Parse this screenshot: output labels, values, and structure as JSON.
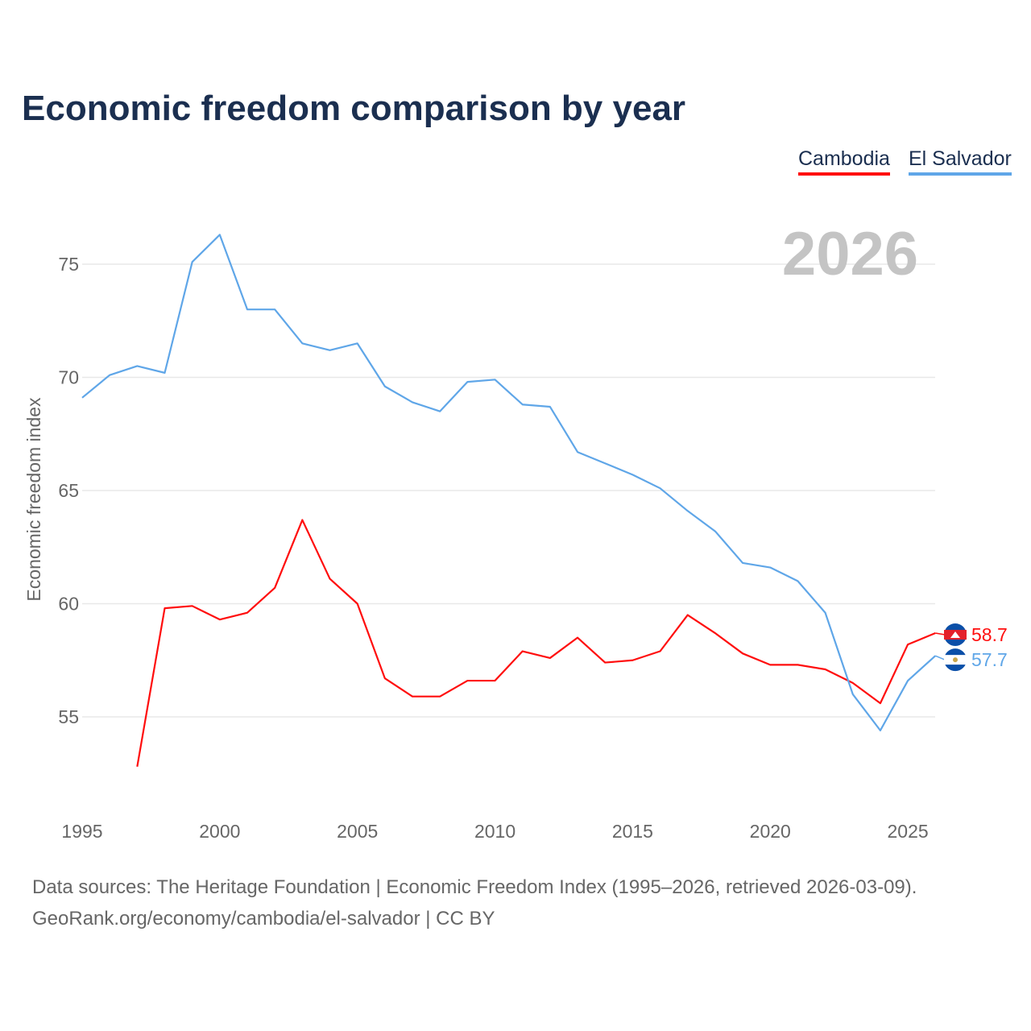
{
  "chart_data": {
    "type": "line",
    "title": "Economic freedom comparison by year",
    "ylabel": "Economic freedom index",
    "xlabel": "",
    "current_year": "2026",
    "xlim": [
      1995,
      2026
    ],
    "ylim": [
      51.5,
      78
    ],
    "yticks": [
      55,
      60,
      65,
      70,
      75
    ],
    "xticks": [
      1995,
      2000,
      2005,
      2010,
      2015,
      2020,
      2025
    ],
    "grid": true,
    "legend_placement": "top-right",
    "series": [
      {
        "name": "Cambodia",
        "color": "#ff0d0d",
        "end_label": "58.7",
        "x": [
          1997,
          1998,
          1999,
          2000,
          2001,
          2002,
          2003,
          2004,
          2005,
          2006,
          2007,
          2008,
          2009,
          2010,
          2011,
          2012,
          2013,
          2014,
          2015,
          2016,
          2017,
          2018,
          2019,
          2020,
          2021,
          2022,
          2023,
          2024,
          2025,
          2026
        ],
        "values": [
          52.8,
          59.8,
          59.9,
          59.3,
          59.6,
          60.7,
          63.7,
          61.1,
          60.0,
          56.7,
          55.9,
          55.9,
          56.6,
          56.6,
          57.9,
          57.6,
          58.5,
          57.4,
          57.5,
          57.9,
          59.5,
          58.7,
          57.8,
          57.3,
          57.3,
          57.1,
          56.5,
          55.6,
          58.2,
          58.7
        ]
      },
      {
        "name": "El Salvador",
        "color": "#5fa6e8",
        "end_label": "57.7",
        "x": [
          1995,
          1996,
          1997,
          1998,
          1999,
          2000,
          2001,
          2002,
          2003,
          2004,
          2005,
          2006,
          2007,
          2008,
          2009,
          2010,
          2011,
          2012,
          2013,
          2014,
          2015,
          2016,
          2017,
          2018,
          2019,
          2020,
          2021,
          2022,
          2023,
          2024,
          2025,
          2026
        ],
        "values": [
          69.1,
          70.1,
          70.5,
          70.2,
          75.1,
          76.3,
          73.0,
          73.0,
          71.5,
          71.2,
          71.5,
          69.6,
          68.9,
          68.5,
          69.8,
          69.9,
          68.8,
          68.7,
          66.7,
          66.2,
          65.7,
          65.1,
          64.1,
          63.2,
          61.8,
          61.6,
          61.0,
          59.6,
          56.0,
          54.4,
          56.6,
          57.7
        ]
      }
    ]
  },
  "footer": {
    "line1": "Data sources: The Heritage Foundation | Economic Freedom Index (1995–2026, retrieved 2026-03-09).",
    "line2": "GeoRank.org/economy/cambodia/el-salvador | CC BY"
  }
}
